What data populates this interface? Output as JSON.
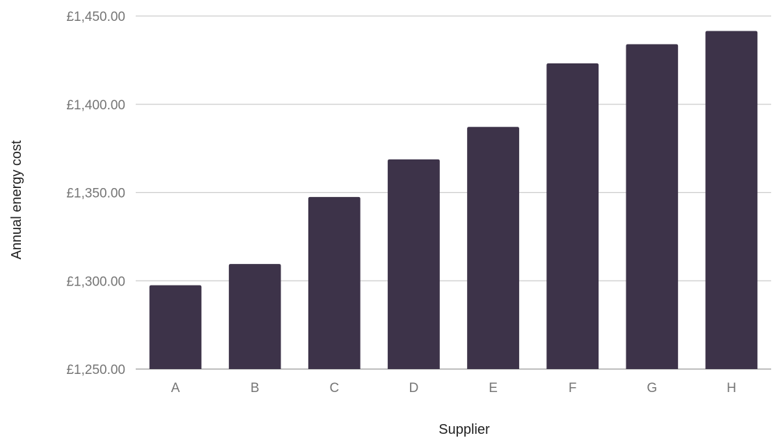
{
  "chart_data": {
    "type": "bar",
    "categories": [
      "A",
      "B",
      "C",
      "D",
      "E",
      "F",
      "G",
      "H"
    ],
    "values": [
      1297.5,
      1309.5,
      1347.5,
      1368.8,
      1387.2,
      1423.2,
      1434.0,
      1441.5
    ],
    "xlabel": "Supplier",
    "ylabel": "Annual energy cost",
    "ylim": [
      1250,
      1450
    ],
    "yticks": [
      1250,
      1300,
      1350,
      1400,
      1450
    ],
    "ytick_labels": [
      "£1,250.00",
      "£1,300.00",
      "£1,350.00",
      "£1,400.00",
      "£1,450.00"
    ],
    "grid": true,
    "legend": "none",
    "colors": {
      "bar": "#3d3349",
      "gridline": "#cccccc",
      "tick_text": "#757575",
      "axis_title": "#222222"
    }
  }
}
